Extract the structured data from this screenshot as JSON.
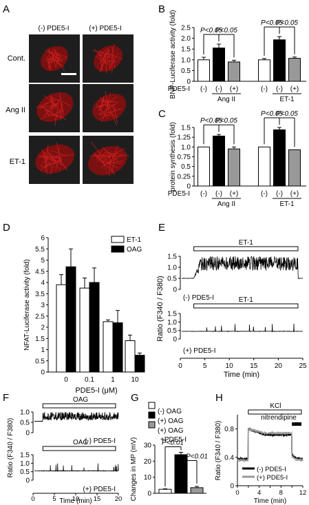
{
  "colors": {
    "black": "#000000",
    "white": "#ffffff",
    "gray": "#999999",
    "micro_bg": "#1e1e1e",
    "red": "#d42020"
  },
  "panels": {
    "A": {
      "label": "A",
      "col_headers": [
        "(-) PDE5-I",
        "(+) PDE5-I"
      ],
      "row_labels": [
        "Cont.",
        "Ang II",
        "ET-1"
      ]
    },
    "B": {
      "label": "B"
    },
    "C": {
      "label": "C"
    },
    "D": {
      "label": "D"
    },
    "E": {
      "label": "E",
      "top_tag": "(-) PDE5-I",
      "bottom_tag": "(+) PDE5-I",
      "bar_label": "ET-1",
      "ylabel": "Ratio (F340 / F380)",
      "xlabel": "Time (min)"
    },
    "F": {
      "label": "F",
      "top_tag": "(-) PDE5-I",
      "bottom_tag": "(+) PDE5-I",
      "bar_label": "OAG",
      "ylabel": "Ratio (F340 / F380)",
      "xlabel": "Time (min)"
    },
    "G": {
      "label": "G",
      "legend": [
        "(-) OAG",
        "(+) OAG",
        "(+) OAG",
        "+PDE5-I"
      ]
    },
    "H": {
      "label": "H",
      "bar_label": "KCl",
      "bar2_label": "nitrendipine",
      "legend": [
        "(-) PDE5-I",
        "(+) PDE5-I"
      ],
      "ylabel": "Ratio (F340 / F380)",
      "xlabel": "Time (min)"
    }
  },
  "chart_data": [
    {
      "id": "B",
      "type": "bar",
      "ylabel": "BNP-Luciferase activity (fold)",
      "ylim": [
        0,
        2.5
      ],
      "yticks": [
        "0",
        "0.5",
        "1.0",
        "1.5",
        "2.0",
        "2.5"
      ],
      "row_label": "PDE5-I",
      "group_labels": [
        "Ang II",
        "ET-1"
      ],
      "categories": [
        "(-)",
        "(-)",
        "(+)",
        "(-)",
        "(-)",
        "(+)"
      ],
      "bar_colors": [
        "white",
        "black",
        "gray",
        "white",
        "black",
        "gray"
      ],
      "values": [
        1.0,
        1.55,
        0.9,
        1.0,
        1.93,
        1.07
      ],
      "errors": [
        0.12,
        0.18,
        0.08,
        0.06,
        0.15,
        0.06
      ],
      "annotations": [
        "P<0.05",
        "P<0.05",
        "P<0.05",
        "P<0.05"
      ]
    },
    {
      "id": "C",
      "type": "bar",
      "ylabel": "protein synthesis (fold)",
      "ylim": [
        0,
        1.5
      ],
      "yticks": [
        "0",
        "0.25",
        "0.5",
        "0.75",
        "1.0",
        "1.25",
        "1.5"
      ],
      "row_label": "PDE5-I",
      "group_labels": [
        "Ang II",
        "ET-1"
      ],
      "categories": [
        "(-)",
        "(-)",
        "(+)",
        "(-)",
        "(-)",
        "(+)"
      ],
      "bar_colors": [
        "white",
        "black",
        "gray",
        "white",
        "black",
        "gray"
      ],
      "values": [
        1.0,
        1.28,
        0.95,
        1.0,
        1.44,
        0.93
      ],
      "errors": [
        0.0,
        0.04,
        0.05,
        0.0,
        0.06,
        0.0
      ],
      "annotations": [
        "P<0.05",
        "P<0.05",
        "P<0.05",
        "P<0.05"
      ]
    },
    {
      "id": "D",
      "type": "bar",
      "ylabel": "NFAT-Luciferase activity (fold)",
      "xlabel": "PDE5-I (μM)",
      "ylim": [
        0,
        6
      ],
      "yticks": [
        "0",
        "0.5",
        "1",
        "1.5",
        "2",
        "2.5",
        "3",
        "3.5",
        "4",
        "4.5",
        "5",
        "5.5",
        "6"
      ],
      "categories": [
        "0",
        "0.1",
        "1",
        "10"
      ],
      "series": [
        {
          "name": "ET-1",
          "color": "white",
          "values": [
            3.9,
            3.75,
            2.25,
            1.4
          ],
          "errors": [
            0.45,
            0.45,
            0.08,
            0.25
          ]
        },
        {
          "name": "OAG",
          "color": "black",
          "values": [
            4.7,
            4.0,
            2.2,
            0.75
          ],
          "errors": [
            0.8,
            0.65,
            0.55,
            0.1
          ]
        }
      ]
    },
    {
      "id": "E",
      "type": "line",
      "xlim": [
        0,
        25
      ],
      "xticks": [
        "0",
        "5",
        "10",
        "15",
        "20",
        "25"
      ],
      "traces": [
        {
          "name": "(-) PDE5-I",
          "ylim": [
            0,
            1.5
          ],
          "yticks": [
            "0",
            "0.5",
            "1.0",
            "1.5"
          ],
          "baseline": 0.5,
          "stim_start": 2.5,
          "stim_end": 24,
          "pattern": "osc_high"
        },
        {
          "name": "(+) PDE5-I",
          "ylim": [
            0,
            1.5
          ],
          "yticks": [
            "0",
            "0.5",
            "1.0",
            "1.5"
          ],
          "baseline": 0.45,
          "stim_start": 2.5,
          "stim_end": 24,
          "pattern": "spikes"
        }
      ]
    },
    {
      "id": "F",
      "type": "line",
      "xlim": [
        0,
        20
      ],
      "xticks": [
        "0",
        "5",
        "10",
        "15",
        "20"
      ],
      "traces": [
        {
          "name": "(-) PDE5-I",
          "ylim": [
            0,
            1.0
          ],
          "yticks": [
            "0",
            "0.5",
            "1.0"
          ],
          "baseline": 0.55,
          "stim_start": 2,
          "stim_end": 20,
          "pattern": "osc_mid"
        },
        {
          "name": "(+) PDE5-I",
          "ylim": [
            0,
            1.5
          ],
          "yticks": [
            "0",
            "0.5",
            "1.0",
            "1.5"
          ],
          "baseline": 0.55,
          "stim_start": 2,
          "stim_end": 20,
          "pattern": "spikes"
        }
      ]
    },
    {
      "id": "G",
      "type": "bar",
      "ylabel": "Changes in MP (mV)",
      "ylim": [
        0,
        30
      ],
      "yticks": [
        "0",
        "5",
        "10",
        "15",
        "20",
        "25",
        "30"
      ],
      "categories": [
        "(-) OAG",
        "(+) OAG",
        "(+) OAG +PDE5-I"
      ],
      "bar_colors": [
        "white",
        "black",
        "gray"
      ],
      "values": [
        2.5,
        24.0,
        3.5
      ],
      "errors": [
        0.3,
        1.5,
        0.8
      ],
      "annotations": [
        "P<0.01",
        "P<0.01"
      ]
    },
    {
      "id": "H",
      "type": "line",
      "xlim": [
        0,
        12
      ],
      "xticks": [
        "0",
        "2",
        "4",
        "6",
        "8",
        "10",
        "12"
      ],
      "ylim": [
        0,
        1.0
      ],
      "yticks": [
        "0",
        "0.2",
        "0.4",
        "0.6",
        "0.8",
        "1.0"
      ],
      "series": [
        {
          "name": "(-) PDE5-I",
          "color": "black",
          "baseline": 0.38,
          "peak": 0.8,
          "plateau": 0.72
        },
        {
          "name": "(+) PDE5-I",
          "color": "gray",
          "baseline": 0.36,
          "peak": 0.8,
          "plateau": 0.74
        }
      ]
    }
  ]
}
